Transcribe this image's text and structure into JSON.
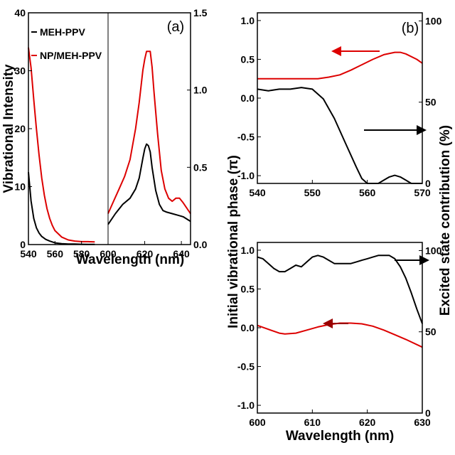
{
  "chart_data": [
    {
      "panel_label": "(a)",
      "type": "line",
      "xlabel": "Wavelength (nm)",
      "ylabel": "Vibrational Intensity",
      "legend": {
        "placement": "top-left",
        "entries": [
          {
            "name": "MEH-PPV",
            "color": "#000000"
          },
          {
            "name": "NP/MEH-PPV",
            "color": "#dd0000"
          }
        ]
      },
      "left_part": {
        "xlim": [
          540,
          600
        ],
        "xticks": [
          "540",
          "560",
          "580",
          "600"
        ],
        "ylim": [
          0,
          40
        ],
        "yticks": [
          "0",
          "10",
          "20",
          "30",
          "40"
        ],
        "series": [
          {
            "name": "MEH-PPV",
            "color": "#000000",
            "x": [
              540,
              542,
              544,
              546,
              548,
              550,
              553,
              556,
              560,
              565,
              570,
              575,
              580,
              585,
              590
            ],
            "y": [
              12.5,
              7.5,
              4.5,
              2.9,
              2.0,
              1.4,
              0.9,
              0.6,
              0.3,
              0.15,
              0.1,
              0.08,
              0.05,
              0.03,
              0.02
            ]
          },
          {
            "name": "NP/MEH-PPV",
            "color": "#dd0000",
            "x": [
              540,
              542,
              544,
              546,
              548,
              550,
              552,
              554,
              556,
              558,
              560,
              565,
              570,
              575,
              580,
              585,
              590
            ],
            "y": [
              34,
              30.5,
              25,
              20,
              15.5,
              11.5,
              8.5,
              6.2,
              4.5,
              3.3,
              2.4,
              1.3,
              0.8,
              0.6,
              0.5,
              0.5,
              0.45
            ]
          }
        ]
      },
      "right_part": {
        "xlim": [
          600,
          645
        ],
        "xticks": [
          "600",
          "620",
          "640"
        ],
        "ylim": [
          0,
          1.5
        ],
        "yticks": [
          "0.0",
          "0.5",
          "1.0",
          "1.5"
        ],
        "series": [
          {
            "name": "MEH-PPV",
            "color": "#000000",
            "x": [
              600,
              604,
              608,
              612,
              615,
              617,
              619,
              620,
              621,
              622,
              623,
              624,
              626,
              628,
              630,
              632,
              635,
              638,
              641,
              645
            ],
            "y": [
              0.13,
              0.2,
              0.26,
              0.3,
              0.36,
              0.43,
              0.56,
              0.62,
              0.65,
              0.64,
              0.6,
              0.5,
              0.35,
              0.26,
              0.22,
              0.21,
              0.2,
              0.19,
              0.18,
              0.15
            ]
          },
          {
            "name": "NP/MEH-PPV",
            "color": "#dd0000",
            "x": [
              600,
              603,
              606,
              609,
              612,
              615,
              617,
              619,
              620,
              621,
              623,
              624,
              625,
              627,
              629,
              631,
              633,
              635,
              637,
              639,
              641,
              645
            ],
            "y": [
              0.2,
              0.28,
              0.36,
              0.44,
              0.55,
              0.75,
              0.92,
              1.13,
              1.2,
              1.25,
              1.25,
              1.15,
              1.0,
              0.72,
              0.48,
              0.36,
              0.3,
              0.28,
              0.3,
              0.3,
              0.27,
              0.2
            ]
          }
        ]
      }
    },
    {
      "panel_label": "(b)",
      "type": "line",
      "xlim": [
        540,
        570
      ],
      "xticks": [
        "540",
        "550",
        "560",
        "570"
      ],
      "ylim": [
        -1.1,
        1.1
      ],
      "yticks": [
        "1.0",
        "0.5",
        "0.0",
        "-0.5",
        "-1.0"
      ],
      "ylim_right": [
        0,
        105
      ],
      "yticks_right": [
        "100",
        "50",
        "0"
      ],
      "series": [
        {
          "name": "phase",
          "color": "#dd0000",
          "axis": "left",
          "x": [
            540,
            543,
            546,
            549,
            551,
            553,
            555,
            557,
            559,
            561,
            563,
            565,
            566,
            567,
            569,
            570
          ],
          "y": [
            0.25,
            0.25,
            0.25,
            0.25,
            0.25,
            0.27,
            0.3,
            0.36,
            0.43,
            0.5,
            0.56,
            0.59,
            0.59,
            0.57,
            0.5,
            0.45
          ]
        },
        {
          "name": "excited state contribution",
          "color": "#000000",
          "axis": "right",
          "x": [
            540,
            542,
            544,
            546,
            548,
            550,
            552,
            554,
            556,
            558,
            559,
            560,
            561,
            562,
            563,
            564,
            565,
            566,
            567,
            568,
            569,
            570
          ],
          "y": [
            58,
            57,
            58,
            58,
            59,
            58,
            52,
            40,
            25,
            10,
            3,
            0,
            -1,
            0,
            2,
            4,
            5,
            4,
            2,
            0,
            -1,
            -1
          ]
        }
      ]
    },
    {
      "panel_label": "",
      "type": "line",
      "xlim": [
        600,
        630
      ],
      "xticks": [
        "600",
        "610",
        "620",
        "630"
      ],
      "xlabel": "Wavelength (nm)",
      "ylim": [
        -1.1,
        1.1
      ],
      "yticks": [
        "1.0",
        "0.5",
        "0.0",
        "-0.5",
        "-1.0"
      ],
      "ylim_right": [
        0,
        105
      ],
      "yticks_right": [
        "100",
        "50",
        "0"
      ],
      "series": [
        {
          "name": "phase",
          "color": "#dd0000",
          "axis": "left",
          "x": [
            600,
            602,
            604,
            605,
            607,
            609,
            611,
            613,
            615,
            617,
            619,
            621,
            623,
            625,
            627,
            630
          ],
          "y": [
            0.03,
            -0.02,
            -0.07,
            -0.08,
            -0.07,
            -0.03,
            0.01,
            0.04,
            0.06,
            0.06,
            0.05,
            0.02,
            -0.03,
            -0.09,
            -0.15,
            -0.25
          ]
        },
        {
          "name": "excited state contribution",
          "color": "#000000",
          "axis": "right",
          "x": [
            600,
            601,
            602,
            603,
            604,
            605,
            606,
            607,
            608,
            609,
            610,
            611,
            612,
            613,
            614,
            615,
            616,
            617,
            618,
            619,
            620,
            621,
            622,
            623,
            624,
            625,
            626,
            627,
            628,
            629,
            630
          ],
          "y": [
            96,
            95,
            92,
            89,
            87,
            87,
            89,
            91,
            90,
            93,
            96,
            97,
            96,
            94,
            92,
            92,
            92,
            92,
            93,
            94,
            95,
            96,
            97,
            97,
            97,
            95,
            90,
            83,
            74,
            64,
            55
          ]
        }
      ]
    },
    {
      "shared_labels": {
        "ylabel_left": "Initial vibrational phase (π)",
        "ylabel_right": "Excited state contribution (%)"
      }
    }
  ]
}
